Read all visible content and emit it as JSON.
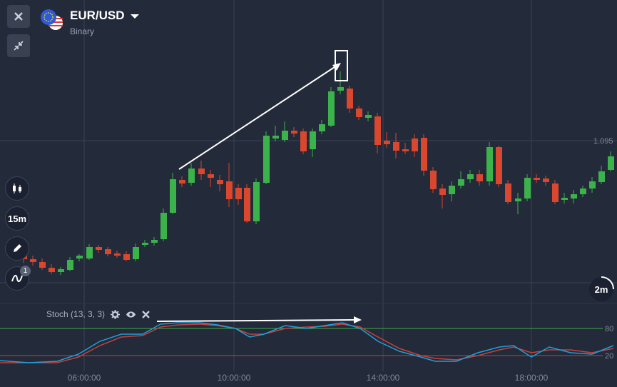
{
  "asset": {
    "pair": "EUR/USD",
    "type": "Binary"
  },
  "toolbar": {
    "interval": "15m",
    "indicator_count": "1",
    "timer": "2m"
  },
  "indicator": {
    "label": "Stoch (13, 3, 3)"
  },
  "price_label": "1.095",
  "stoch_levels": {
    "upper": "80",
    "lower": "20"
  },
  "time_labels": [
    "06:00:00",
    "10:00:00",
    "14:00:00",
    "18:00:00"
  ],
  "colors": {
    "up": "#3cb34a",
    "down": "#d9472e",
    "background": "#232a3a",
    "stoch_k": "#1e9fd8",
    "stoch_d": "#c8403a",
    "level_upper": "#3cae4b",
    "level_lower": "#c8403a"
  },
  "icons": [
    "close-icon",
    "collapse-icon",
    "candles-icon",
    "pencil-icon",
    "indicator-icon",
    "gear-icon",
    "eye-icon",
    "dropdown-icon"
  ]
}
